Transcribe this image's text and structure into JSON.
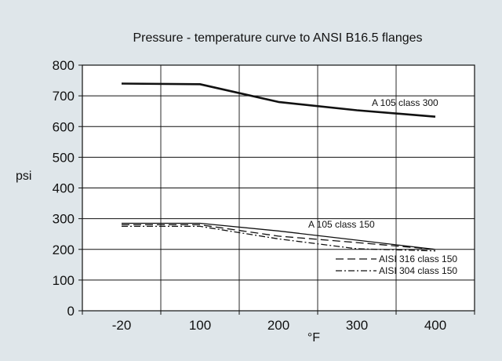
{
  "chart_data": {
    "type": "line",
    "title": "Pressure - temperature curve to ANSI B16.5 flanges",
    "xlabel": "°F",
    "ylabel": "psi",
    "x_categories": [
      "-20",
      "100",
      "200",
      "300",
      "400"
    ],
    "y_ticks": [
      "0",
      "100",
      "200",
      "300",
      "400",
      "500",
      "600",
      "700",
      "800"
    ],
    "ylim": [
      0,
      800
    ],
    "grid": true,
    "series": [
      {
        "name": "A 105 class 300",
        "style": "solid-thick",
        "color": "#111111",
        "x": [
          "-20",
          "100",
          "200",
          "300",
          "400"
        ],
        "values": [
          740,
          738,
          680,
          653,
          632
        ]
      },
      {
        "name": "A 105 class 150",
        "style": "solid",
        "color": "#111111",
        "x": [
          "-20",
          "100",
          "200",
          "300",
          "400"
        ],
        "values": [
          285,
          285,
          260,
          230,
          200
        ]
      },
      {
        "name": "AISI 316 class 150",
        "style": "dashed",
        "color": "#111111",
        "x": [
          "-20",
          "100",
          "200",
          "300",
          "400"
        ],
        "values": [
          280,
          280,
          243,
          222,
          200
        ]
      },
      {
        "name": "AISI 304 class 150",
        "style": "dash-dot",
        "color": "#111111",
        "x": [
          "-20",
          "100",
          "200",
          "300",
          "400"
        ],
        "values": [
          275,
          275,
          234,
          202,
          195
        ]
      }
    ],
    "colors": {
      "background": "#dfe6ea",
      "plot_area": "#ffffff",
      "line": "#111111"
    }
  }
}
